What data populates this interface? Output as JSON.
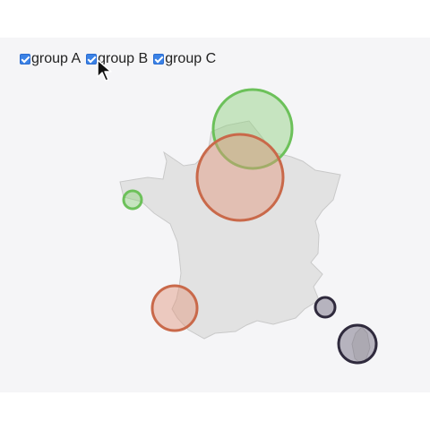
{
  "legend": {
    "items": [
      {
        "label": "group A",
        "checked": true
      },
      {
        "label": "group B",
        "checked": true
      },
      {
        "label": "group C",
        "checked": true
      }
    ]
  },
  "map": {
    "region": "France",
    "fill": "#e2e2e2",
    "stroke": "#c9c9c9"
  },
  "colors": {
    "group A": "#8fd17c",
    "group B": "#e2957a",
    "group C": "#6b6478",
    "checkbox": "#3b82e6"
  },
  "markers": [
    {
      "group": "group A",
      "location": "Paris region",
      "size": 44
    },
    {
      "group": "group B",
      "location": "Paris region",
      "size": 48
    },
    {
      "group": "group A",
      "location": "Brittany",
      "size": 10
    },
    {
      "group": "group B",
      "location": "Pyrenees",
      "size": 25
    },
    {
      "group": "group C",
      "location": "Côte d'Azur",
      "size": 11
    },
    {
      "group": "group C",
      "location": "Corsica",
      "size": 21
    }
  ]
}
